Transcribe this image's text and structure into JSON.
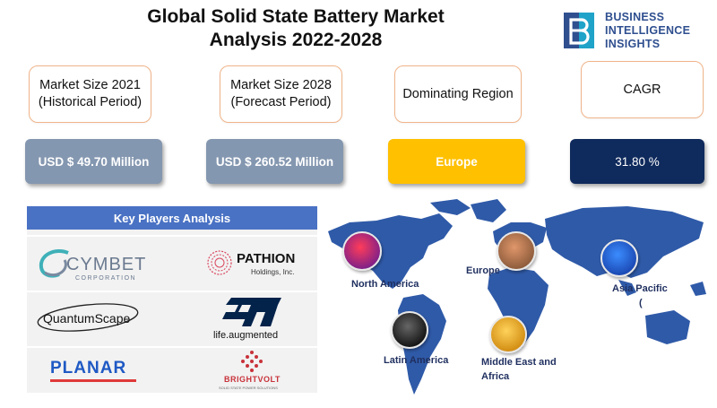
{
  "header": {
    "title_line1": "Global Solid State Battery Market",
    "title_line2": "Analysis 2022-2028"
  },
  "logo": {
    "line1": "BUSINESS",
    "line2": "INTELLIGENCE",
    "line3": "INSIGHTS",
    "brand_color": "#2f4f8f",
    "mark_color": "#1fa3c9"
  },
  "metrics": [
    {
      "label_line1": "Market Size 2021",
      "label_line2": "(Historical Period)",
      "value": "USD $ 49.70  Million",
      "color": "#8497b0"
    },
    {
      "label_line1": "Market Size 2028",
      "label_line2": "(Forecast Period)",
      "value": "USD $ 260.52  Million",
      "color": "#8497b0"
    },
    {
      "label_line1": "Dominating Region",
      "label_line2": "",
      "value": "Europe",
      "color": "#ffc000"
    },
    {
      "label_line1": "CAGR",
      "label_line2": "",
      "value": "31.80 %",
      "color": "#0f2a5c"
    }
  ],
  "key_players": {
    "title": "Key Players Analysis",
    "players": [
      {
        "name": "CYMBET",
        "sub": "CORPORATION",
        "icon": "cymbet-logo"
      },
      {
        "name": "PATHION",
        "sub": "Holdings, Inc.",
        "icon": "pathion-logo"
      },
      {
        "name": "QuantumScape",
        "sub": "",
        "icon": "quantumscape-logo"
      },
      {
        "name": "ST",
        "sub": "life.augmented",
        "icon": "st-logo"
      },
      {
        "name": "PLANAR",
        "sub": "",
        "icon": "planar-logo"
      },
      {
        "name": "BRIGHTVOLT",
        "sub": "SOLID STATE POWER SOLUTIONS",
        "icon": "brightvolt-logo"
      }
    ]
  },
  "map": {
    "regions": [
      {
        "label": "North  America",
        "color": "#e0245a"
      },
      {
        "label": "Europe",
        "color": "#c46a3b"
      },
      {
        "label": "Asia Pacific",
        "label2": "(",
        "color": "#1f6fe0"
      },
      {
        "label": "Latin America",
        "color": "#3a3a3a"
      },
      {
        "label": "Middle East and",
        "label2": "Africa",
        "color": "#f0b020"
      }
    ],
    "land_color": "#2f5aa8"
  }
}
